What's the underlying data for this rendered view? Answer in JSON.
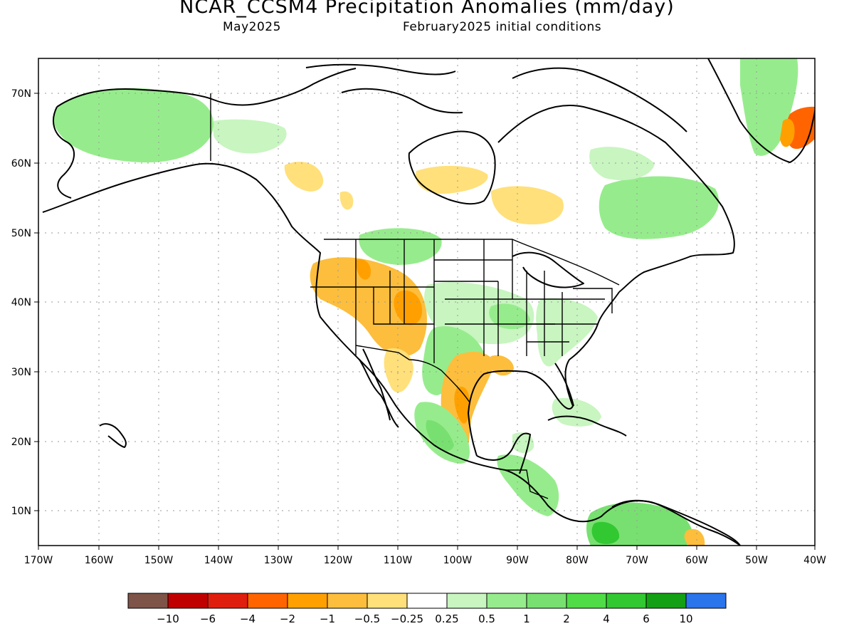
{
  "header": {
    "title": "NCAR_CCSM4 Precipitation Anomalies (mm/day)",
    "valid_month": "May2025",
    "init_conditions": "February2025 initial conditions"
  },
  "map": {
    "lon_labels": [
      "170W",
      "160W",
      "150W",
      "140W",
      "130W",
      "120W",
      "110W",
      "100W",
      "90W",
      "80W",
      "70W",
      "60W",
      "50W",
      "40W"
    ],
    "lat_labels": [
      "70N",
      "60N",
      "50N",
      "40N",
      "30N",
      "20N",
      "10N"
    ],
    "lon_values": [
      -170,
      -160,
      -150,
      -140,
      -130,
      -120,
      -110,
      -100,
      -90,
      -80,
      -70,
      -60,
      -50,
      -40
    ],
    "lat_values": [
      70,
      60,
      50,
      40,
      30,
      20,
      10
    ],
    "lon_range": [
      -170,
      -40
    ],
    "lat_range": [
      5,
      75
    ],
    "grid": "dotted",
    "anomaly_regions": [
      {
        "region": "Alaska",
        "level": 0.5
      },
      {
        "region": "Yukon",
        "level": 0.25
      },
      {
        "region": "British Columbia coast",
        "level": -0.25
      },
      {
        "region": "Hudson Bay west",
        "level": -0.25
      },
      {
        "region": "Quebec",
        "level": -0.5
      },
      {
        "region": "Labrador / Atlantic Canada",
        "level": 0.5
      },
      {
        "region": "Northern Plains",
        "level": 0.5
      },
      {
        "region": "Great Basin",
        "level": -0.5
      },
      {
        "region": "Colorado",
        "level": -1
      },
      {
        "region": "Texas coast",
        "level": -1
      },
      {
        "region": "Louisiana",
        "level": -0.5
      },
      {
        "region": "Ohio Valley",
        "level": 0.5
      },
      {
        "region": "Southern Mexico",
        "level": 1
      },
      {
        "region": "Central America",
        "level": 1
      },
      {
        "region": "Northern South America",
        "level": 2
      },
      {
        "region": "Greenland east coast",
        "level": -2
      }
    ]
  },
  "legend": {
    "labels": [
      "−10",
      "−6",
      "−4",
      "−2",
      "−1",
      "−0.5",
      "−0.25",
      "0.25",
      "0.5",
      "1",
      "2",
      "4",
      "6",
      "10"
    ],
    "colors": [
      "#7e5348",
      "#c00000",
      "#e01e0e",
      "#ff6400",
      "#ffa000",
      "#fcbe3c",
      "#ffe07a",
      "#ffffff",
      "#c8f5c0",
      "#96ec8c",
      "#78e070",
      "#50dc46",
      "#32c832",
      "#14a014",
      "#2a74ec"
    ]
  }
}
